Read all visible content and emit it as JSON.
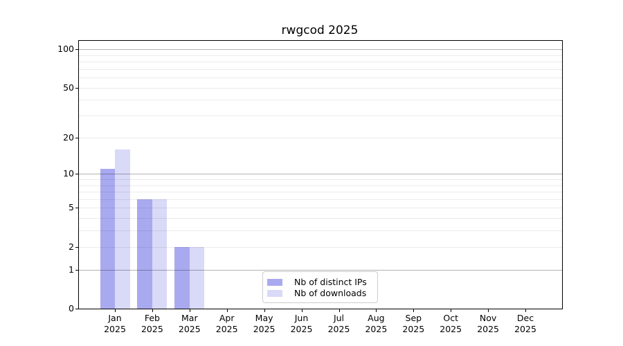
{
  "chart_data": {
    "type": "bar",
    "title": "rwgcod 2025",
    "categories": [
      "Jan",
      "Feb",
      "Mar",
      "Apr",
      "May",
      "Jun",
      "Jul",
      "Aug",
      "Sep",
      "Oct",
      "Nov",
      "Dec"
    ],
    "category_year": "2025",
    "series": [
      {
        "name": "Nb of distinct IPs",
        "color": "#a9a9f0",
        "values": [
          11,
          6,
          2,
          0,
          0,
          0,
          0,
          0,
          0,
          0,
          0,
          0
        ]
      },
      {
        "name": "Nb of downloads",
        "color": "#d9d9f8",
        "values": [
          16,
          6,
          2,
          0,
          0,
          0,
          0,
          0,
          0,
          0,
          0,
          0
        ]
      }
    ],
    "xlabel": "",
    "ylabel": "",
    "yscale": "log10(value+1)",
    "ylim": [
      0,
      116
    ],
    "yticks": [
      100,
      50,
      20,
      10,
      5,
      2,
      1,
      0
    ],
    "grid": {
      "major_values": [
        1,
        10,
        100
      ],
      "minor_values": [
        2,
        3,
        4,
        5,
        6,
        7,
        8,
        9,
        20,
        30,
        40,
        50,
        60,
        70,
        80,
        90
      ],
      "major_color": "rgba(0,0,0,0.30)",
      "minor_color": "rgba(0,0,0,0.08)"
    },
    "legend": {
      "position": "lower center",
      "entries": [
        "Nb of distinct IPs",
        "Nb of downloads"
      ]
    },
    "axis_color": "#000000",
    "text_color": "#000000"
  }
}
